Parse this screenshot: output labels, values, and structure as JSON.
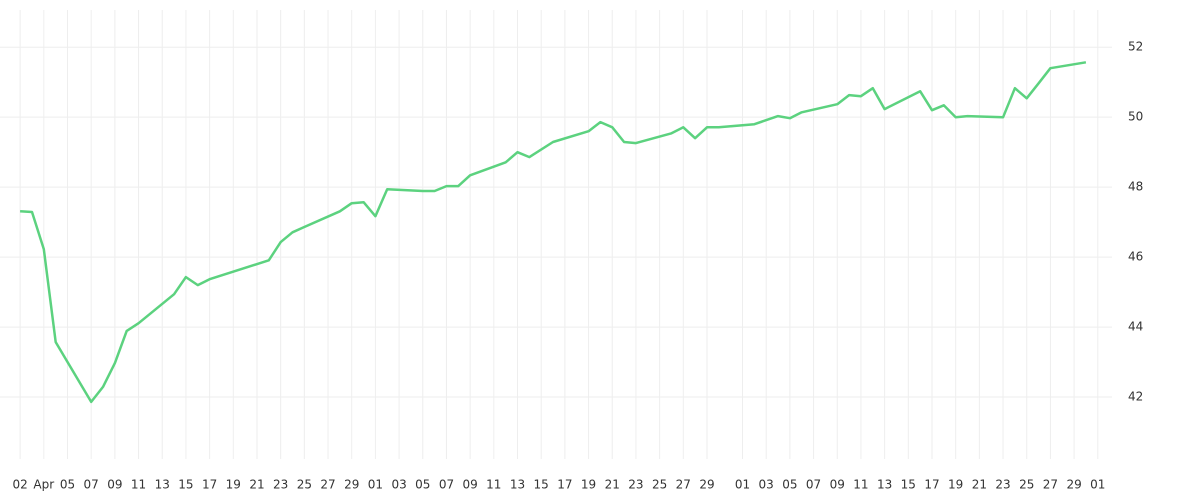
{
  "chart_data": {
    "type": "line",
    "color": "#5cd27f",
    "grid": true,
    "x": [
      0,
      1,
      2,
      3,
      6,
      7,
      8,
      9,
      10,
      13,
      14,
      15,
      16,
      21,
      22,
      23,
      24,
      27,
      28,
      29,
      30,
      31,
      34,
      35,
      36,
      37,
      38,
      41,
      42,
      43,
      45,
      48,
      49,
      50,
      51,
      52,
      55,
      56,
      57,
      58,
      59,
      62,
      64,
      65,
      66,
      69,
      70,
      71,
      72,
      73,
      76,
      77,
      78,
      79,
      80,
      83,
      84,
      85,
      86,
      87,
      90
    ],
    "values": [
      47.31,
      47.29,
      46.23,
      43.57,
      41.86,
      42.29,
      42.97,
      43.89,
      44.11,
      44.94,
      45.43,
      45.2,
      45.37,
      45.91,
      46.43,
      46.71,
      46.86,
      47.31,
      47.54,
      47.57,
      47.17,
      47.94,
      47.89,
      47.89,
      48.03,
      48.03,
      48.34,
      48.71,
      49.0,
      48.86,
      49.29,
      49.6,
      49.86,
      49.71,
      49.29,
      49.26,
      49.54,
      49.71,
      49.4,
      49.71,
      49.71,
      49.8,
      50.03,
      49.97,
      50.14,
      50.37,
      50.63,
      50.6,
      50.83,
      50.23,
      50.74,
      50.2,
      50.34,
      50.0,
      50.03,
      50.0,
      50.83,
      50.54,
      50.97,
      51.4,
      51.57
    ],
    "xlim": [
      -1.7,
      92.2
    ],
    "xticks": [
      {
        "value": 0,
        "label": "02"
      },
      {
        "value": 2,
        "label": "Apr"
      },
      {
        "value": 4,
        "label": "05"
      },
      {
        "value": 6,
        "label": "07"
      },
      {
        "value": 8,
        "label": "09"
      },
      {
        "value": 10,
        "label": "11"
      },
      {
        "value": 12,
        "label": "13"
      },
      {
        "value": 14,
        "label": "15"
      },
      {
        "value": 16,
        "label": "17"
      },
      {
        "value": 18,
        "label": "19"
      },
      {
        "value": 20,
        "label": "21"
      },
      {
        "value": 22,
        "label": "23"
      },
      {
        "value": 24,
        "label": "25"
      },
      {
        "value": 26,
        "label": "27"
      },
      {
        "value": 28,
        "label": "29"
      },
      {
        "value": 30,
        "label": "01"
      },
      {
        "value": 32,
        "label": "03"
      },
      {
        "value": 34,
        "label": "05"
      },
      {
        "value": 36,
        "label": "07"
      },
      {
        "value": 38,
        "label": "09"
      },
      {
        "value": 40,
        "label": "11"
      },
      {
        "value": 42,
        "label": "13"
      },
      {
        "value": 44,
        "label": "15"
      },
      {
        "value": 46,
        "label": "17"
      },
      {
        "value": 48,
        "label": "19"
      },
      {
        "value": 50,
        "label": "21"
      },
      {
        "value": 52,
        "label": "23"
      },
      {
        "value": 54,
        "label": "25"
      },
      {
        "value": 56,
        "label": "27"
      },
      {
        "value": 58,
        "label": "29"
      },
      {
        "value": 61,
        "label": "01"
      },
      {
        "value": 63,
        "label": "03"
      },
      {
        "value": 65,
        "label": "05"
      },
      {
        "value": 67,
        "label": "07"
      },
      {
        "value": 69,
        "label": "09"
      },
      {
        "value": 71,
        "label": "11"
      },
      {
        "value": 73,
        "label": "13"
      },
      {
        "value": 75,
        "label": "15"
      },
      {
        "value": 77,
        "label": "17"
      },
      {
        "value": 79,
        "label": "19"
      },
      {
        "value": 81,
        "label": "21"
      },
      {
        "value": 83,
        "label": "23"
      },
      {
        "value": 85,
        "label": "25"
      },
      {
        "value": 87,
        "label": "27"
      },
      {
        "value": 89,
        "label": "29"
      },
      {
        "value": 91,
        "label": "01"
      }
    ],
    "ylim": [
      40,
      53.35
    ],
    "yticks": [
      42,
      44,
      46,
      48,
      50,
      52
    ]
  }
}
